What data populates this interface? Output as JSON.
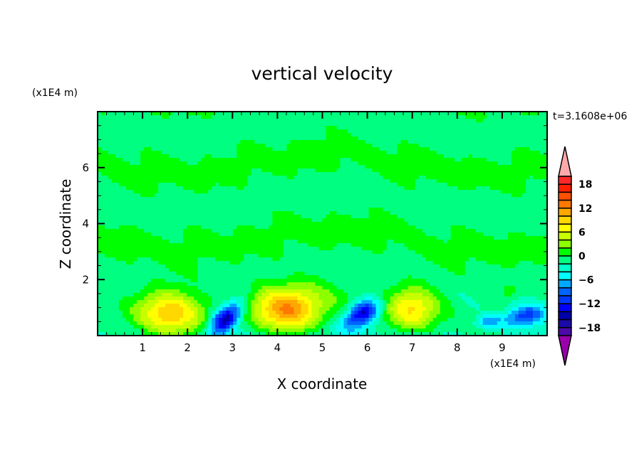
{
  "chart_data": {
    "type": "heatmap",
    "title": "vertical velocity",
    "xlabel": "X coordinate",
    "ylabel": "Z coordinate",
    "x_unit": "(x1E4 m)",
    "y_unit": "(x1E4 m)",
    "time_label": "t=3.1608e+06",
    "xlim": [
      0,
      10
    ],
    "ylim": [
      0,
      8
    ],
    "x_ticks": [
      1,
      2,
      3,
      4,
      5,
      6,
      7,
      8,
      9
    ],
    "y_ticks": [
      2,
      4,
      6
    ],
    "colorbar": {
      "levels": [
        -20,
        -18,
        -16,
        -14,
        -12,
        -10,
        -8,
        -6,
        -4,
        -2,
        0,
        2,
        4,
        6,
        8,
        10,
        12,
        14,
        16,
        18,
        20
      ],
      "labels": [
        18,
        12,
        6,
        0,
        -6,
        -12,
        -18
      ],
      "colors": [
        "#4a0aa8",
        "#1a0aa8",
        "#0000a8",
        "#0000ff",
        "#0038ff",
        "#0064ff",
        "#00a8ff",
        "#00ffff",
        "#00ffc8",
        "#00ff80",
        "#00ff00",
        "#8cff00",
        "#c8ff00",
        "#ffff00",
        "#ffd800",
        "#ffa800",
        "#ff7800",
        "#ff5000",
        "#ff2000",
        "#ff2a2a"
      ],
      "over_color": "#ffaaaa",
      "under_color": "#9900aa"
    },
    "features": [
      {
        "kind": "updraft",
        "x": 1.6,
        "z": 0.8,
        "peak": 11,
        "sx": 0.75,
        "sz": 0.8
      },
      {
        "kind": "downdraft",
        "x": 2.85,
        "z": 0.6,
        "peak": -15,
        "sx": 0.3,
        "sz": 0.6
      },
      {
        "kind": "updraft",
        "x": 4.2,
        "z": 0.9,
        "peak": 13,
        "sx": 0.75,
        "sz": 0.85
      },
      {
        "kind": "downdraft",
        "x": 5.9,
        "z": 0.8,
        "peak": -14,
        "sx": 0.35,
        "sz": 0.5
      },
      {
        "kind": "updraft",
        "x": 7.0,
        "z": 0.9,
        "peak": 9,
        "sx": 0.6,
        "sz": 0.8
      },
      {
        "kind": "downdraft",
        "x": 9.5,
        "z": 0.7,
        "peak": -10,
        "sx": 0.45,
        "sz": 0.4
      },
      {
        "kind": "downdraft",
        "x": 8.7,
        "z": 0.5,
        "peak": -6,
        "sx": 0.25,
        "sz": 0.25
      },
      {
        "kind": "updraft",
        "x": 9.15,
        "z": 1.6,
        "peak": 4,
        "sx": 0.15,
        "sz": 0.2
      }
    ]
  }
}
